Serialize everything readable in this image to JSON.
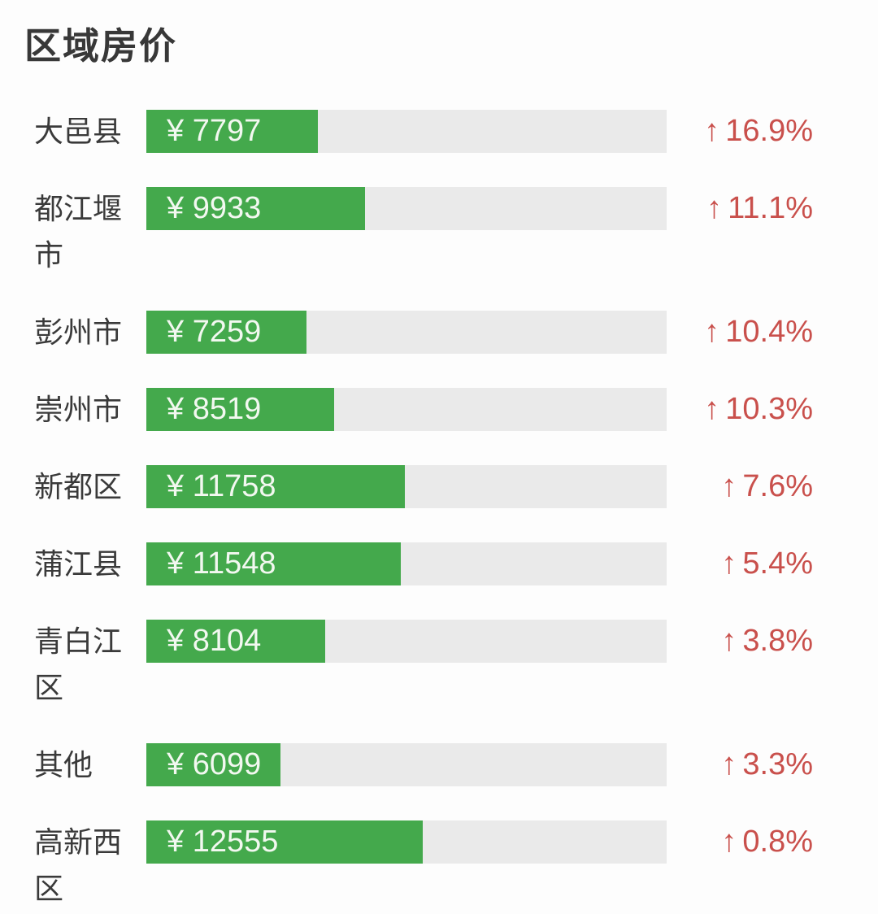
{
  "page": {
    "title": "区域房价"
  },
  "icons": {
    "up_arrow": "↑"
  },
  "colors": {
    "bar_fill": "#44a94c",
    "bar_track": "#eaeaea",
    "change_text": "#c9504c",
    "label_text": "#3a3a3a",
    "price_text": "#f2f8f0",
    "background": "#fdfdfd"
  },
  "chart_data": {
    "type": "bar",
    "orientation": "horizontal",
    "title": "区域房价",
    "categories": [
      "大邑县",
      "都江堰市",
      "彭州市",
      "崇州市",
      "新都区",
      "蒲江县",
      "青白江区",
      "其他",
      "高新西区"
    ],
    "series": [
      {
        "name": "price_yuan",
        "values": [
          7797,
          9933,
          7259,
          8519,
          11758,
          11548,
          8104,
          6099,
          12555
        ]
      },
      {
        "name": "change_percent",
        "values": [
          16.9,
          11.1,
          10.4,
          10.3,
          7.6,
          5.4,
          3.8,
          3.3,
          0.8
        ]
      }
    ],
    "xlim": [
      0,
      23630
    ],
    "grid": false,
    "legend": false,
    "bar_color": "#44a94c",
    "track_color": "#eaeaea",
    "annotation_color": "#c9504c"
  },
  "rows": [
    {
      "label": "大邑县",
      "value": 7797,
      "price_display": "¥ 7797",
      "change_display": "16.9%"
    },
    {
      "label": "都江堰市",
      "value": 9933,
      "price_display": "¥ 9933",
      "change_display": "11.1%"
    },
    {
      "label": "彭州市",
      "value": 7259,
      "price_display": "¥ 7259",
      "change_display": "10.4%"
    },
    {
      "label": "崇州市",
      "value": 8519,
      "price_display": "¥ 8519",
      "change_display": "10.3%"
    },
    {
      "label": "新都区",
      "value": 11758,
      "price_display": "¥ 11758",
      "change_display": "7.6%"
    },
    {
      "label": "蒲江县",
      "value": 11548,
      "price_display": "¥ 11548",
      "change_display": "5.4%"
    },
    {
      "label": "青白江区",
      "value": 8104,
      "price_display": "¥ 8104",
      "change_display": "3.8%"
    },
    {
      "label": "其他",
      "value": 6099,
      "price_display": "¥ 6099",
      "change_display": "3.3%"
    },
    {
      "label": "高新西区",
      "value": 12555,
      "price_display": "¥ 12555",
      "change_display": "0.8%"
    }
  ]
}
